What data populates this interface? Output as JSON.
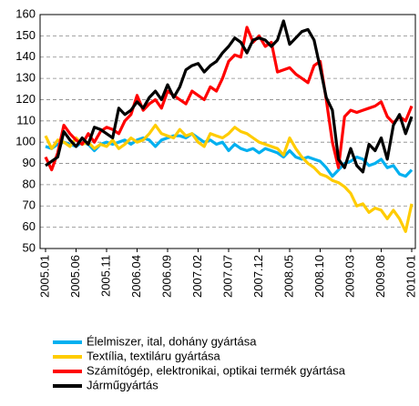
{
  "chart_data": {
    "type": "line",
    "categories": [
      "2005.01",
      null,
      null,
      null,
      null,
      "2005.06",
      null,
      null,
      null,
      null,
      "2005.11",
      null,
      null,
      null,
      null,
      "2006.04",
      null,
      null,
      null,
      null,
      "2006.09",
      null,
      null,
      null,
      null,
      "2007.02",
      null,
      null,
      null,
      null,
      "2007.07",
      null,
      null,
      null,
      null,
      "2007.12",
      null,
      null,
      null,
      null,
      "2008.05",
      null,
      null,
      null,
      null,
      "2008.10",
      null,
      null,
      null,
      null,
      "2009.03",
      null,
      null,
      null,
      null,
      "2009.08",
      null,
      null,
      null,
      null,
      "2010.01"
    ],
    "series": [
      {
        "name": "Élelmiszer, ital, dohány gyártása",
        "color": "#00b0f0",
        "values": [
          98,
          97,
          99,
          100,
          99,
          98,
          100,
          99,
          96,
          99,
          100,
          99,
          100,
          101,
          99,
          101,
          102,
          101,
          98,
          101,
          102,
          103,
          103,
          102,
          104,
          102,
          100,
          101,
          99,
          100,
          96,
          99,
          97,
          96,
          97,
          95,
          97,
          96,
          95,
          93,
          96,
          93,
          92,
          93,
          92,
          91,
          88,
          84,
          87,
          90,
          91,
          93,
          92,
          89,
          90,
          92,
          88,
          89,
          85,
          84,
          87
        ]
      },
      {
        "name": "Textília, textiláru gyártása",
        "color": "#ffcc00",
        "values": [
          103,
          97,
          101,
          100,
          98,
          102,
          99,
          100,
          97,
          99,
          98,
          101,
          97,
          99,
          102,
          100,
          101,
          104,
          108,
          104,
          103,
          102,
          106,
          103,
          104,
          100,
          98,
          104,
          103,
          102,
          104,
          107,
          105,
          104,
          102,
          100,
          99,
          98,
          97,
          94,
          102,
          97,
          93,
          90,
          88,
          85,
          84,
          82,
          81,
          79,
          76,
          70,
          71,
          67,
          69,
          68,
          64,
          68,
          64,
          58,
          71
        ]
      },
      {
        "name": "Számítógép, elektronikai, optikai termék gyártása",
        "color": "#ff0000",
        "values": [
          93,
          87,
          95,
          108,
          104,
          101,
          99,
          104,
          100,
          105,
          107,
          106,
          104,
          110,
          113,
          122,
          115,
          118,
          120,
          116,
          124,
          122,
          120,
          118,
          124,
          122,
          120,
          126,
          124,
          130,
          138,
          141,
          140,
          154,
          147,
          150,
          145,
          147,
          133,
          134,
          135,
          132,
          130,
          128,
          136,
          138,
          120,
          100,
          88,
          112,
          115,
          114,
          115,
          116,
          117,
          119,
          112,
          109,
          112,
          110,
          117
        ]
      },
      {
        "name": "Járműgyártás",
        "color": "#000000",
        "values": [
          89,
          91,
          93,
          105,
          101,
          98,
          102,
          99,
          107,
          106,
          104,
          102,
          116,
          113,
          115,
          119,
          116,
          121,
          124,
          120,
          127,
          121,
          126,
          134,
          136,
          137,
          133,
          136,
          138,
          142,
          145,
          149,
          147,
          142,
          148,
          149,
          148,
          145,
          148,
          157,
          146,
          149,
          152,
          153,
          148,
          135,
          121,
          115,
          92,
          88,
          97,
          89,
          86,
          99,
          96,
          102,
          92,
          108,
          113,
          104,
          112
        ]
      }
    ],
    "ylim": [
      50,
      160
    ],
    "yticks": [
      50,
      60,
      70,
      80,
      90,
      100,
      110,
      120,
      130,
      140,
      150,
      160
    ],
    "grid": true
  }
}
